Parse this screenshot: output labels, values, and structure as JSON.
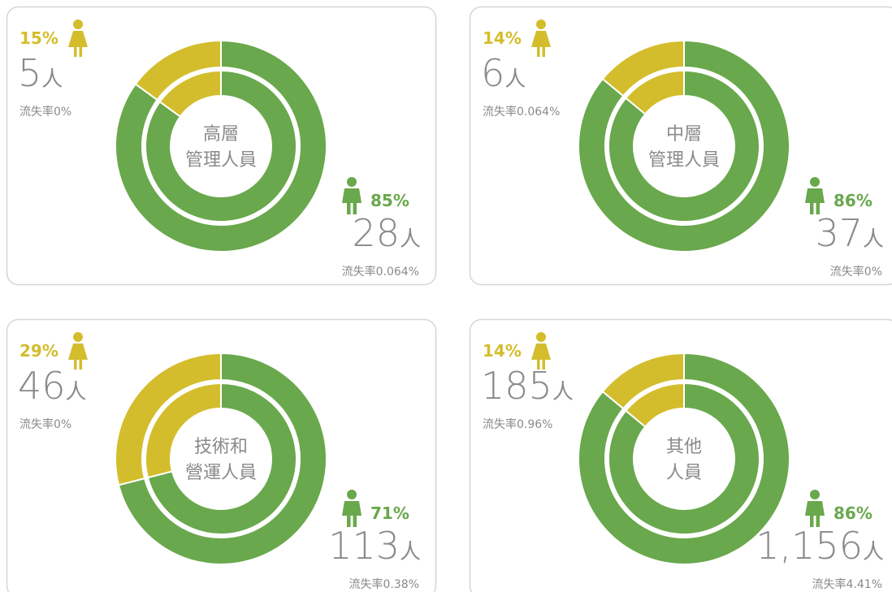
{
  "chart_data": [
    {
      "type": "donut",
      "center_label": [
        "高層",
        "管理人員"
      ],
      "values": [
        15,
        85
      ],
      "value_labels": [
        "15%",
        "85%"
      ],
      "colors": [
        "#d4bd2c",
        "#69a84c"
      ],
      "counts": [
        5,
        28
      ],
      "unit": "人",
      "rate_prefix": "流失率",
      "rates": [
        0,
        0.064
      ],
      "rate_labels": [
        "0%",
        "0.064%"
      ]
    },
    {
      "type": "donut",
      "center_label": [
        "中層",
        "管理人員"
      ],
      "values": [
        14,
        86
      ],
      "value_labels": [
        "14%",
        "86%"
      ],
      "colors": [
        "#d4bd2c",
        "#69a84c"
      ],
      "counts": [
        6,
        37
      ],
      "unit": "人",
      "rate_prefix": "流失率",
      "rates": [
        0.064,
        0
      ],
      "rate_labels": [
        "0.064%",
        "0%"
      ]
    },
    {
      "type": "donut",
      "center_label": [
        "技術和",
        "營運人員"
      ],
      "values": [
        29,
        71
      ],
      "value_labels": [
        "29%",
        "71%"
      ],
      "colors": [
        "#d4bd2c",
        "#69a84c"
      ],
      "counts": [
        46,
        113
      ],
      "unit": "人",
      "rate_prefix": "流失率",
      "rates": [
        0,
        0.38
      ],
      "rate_labels": [
        "0%",
        "0.38%"
      ]
    },
    {
      "type": "donut",
      "center_label": [
        "其他",
        "人員"
      ],
      "values": [
        14,
        86
      ],
      "value_labels": [
        "14%",
        "86%"
      ],
      "colors": [
        "#d4bd2c",
        "#69a84c"
      ],
      "counts": [
        185,
        1156
      ],
      "count_labels": [
        "185",
        "1,156"
      ],
      "unit": "人",
      "rate_prefix": "流失率",
      "rates": [
        0.96,
        4.41
      ],
      "rate_labels": [
        "0.96%",
        "4.41%"
      ]
    }
  ]
}
